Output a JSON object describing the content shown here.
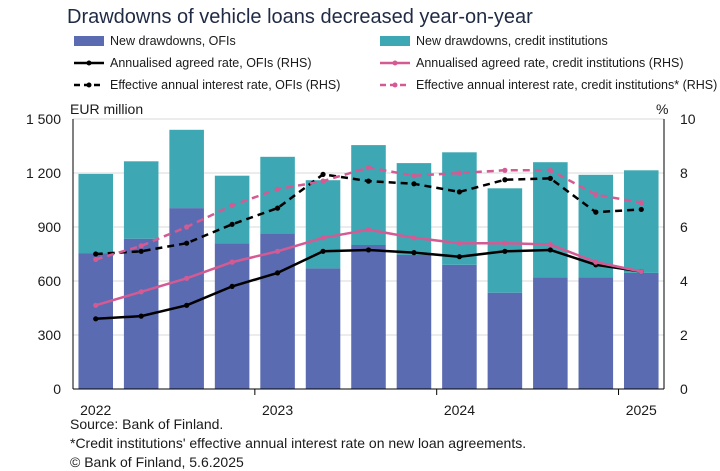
{
  "title": "Drawdowns of vehicle loans decreased year-on-year",
  "legend": [
    {
      "label": "New drawdowns, OFIs",
      "kind": "bar",
      "color": "#5b6bb1"
    },
    {
      "label": "New drawdowns, credit institutions",
      "kind": "bar",
      "color": "#3ea7b4"
    },
    {
      "label": "Annualised agreed rate, OFIs (RHS)",
      "kind": "line",
      "color": "#000000",
      "dash": false
    },
    {
      "label": "Annualised agreed rate, credit institutions (RHS)",
      "kind": "line",
      "color": "#d45a93",
      "dash": false
    },
    {
      "label": "Effective annual interest rate, OFIs (RHS)",
      "kind": "line",
      "color": "#000000",
      "dash": true
    },
    {
      "label": "Effective annual interest rate, credit institutions* (RHS)",
      "kind": "line",
      "color": "#d45a93",
      "dash": true
    }
  ],
  "footer": {
    "source": "Source: Bank of Finland.",
    "note": "*Credit institutions' effective annual interest rate on new loan agreements.",
    "copyright": "© Bank of Finland, 5.6.2025"
  },
  "chart_data": {
    "type": "bar",
    "title": "Drawdowns of vehicle loans decreased year-on-year",
    "ylabel": "EUR million",
    "y2label": "%",
    "ylim": [
      0,
      1500
    ],
    "y2lim": [
      0,
      10
    ],
    "yticks": [
      "0",
      "300",
      "600",
      "900",
      "1 200",
      "1 500"
    ],
    "y2ticks": [
      "0",
      "2",
      "4",
      "6",
      "8",
      "10"
    ],
    "xticks": [
      {
        "label": "2022",
        "index": 0
      },
      {
        "label": "2023",
        "index": 4
      },
      {
        "label": "2024",
        "index": 8
      },
      {
        "label": "2025",
        "index": 12
      }
    ],
    "periods": 13,
    "bars": [
      {
        "name": "New drawdowns, OFIs",
        "values": [
          755,
          835,
          1005,
          810,
          865,
          670,
          800,
          745,
          690,
          535,
          620,
          620,
          645
        ]
      },
      {
        "name": "New drawdowns, credit institutions",
        "values": [
          440,
          430,
          435,
          375,
          425,
          490,
          555,
          510,
          625,
          580,
          640,
          570,
          570
        ]
      }
    ],
    "lines": [
      {
        "name": "Annualised agreed rate, OFIs (RHS)",
        "values": [
          2.6,
          2.7,
          3.1,
          3.8,
          4.3,
          5.1,
          5.15,
          5.05,
          4.9,
          5.1,
          5.15,
          4.6,
          4.35
        ]
      },
      {
        "name": "Annualised agreed rate, credit institutions (RHS)",
        "values": [
          3.1,
          3.6,
          4.1,
          4.7,
          5.1,
          5.6,
          5.9,
          5.6,
          5.4,
          5.4,
          5.35,
          4.7,
          4.35
        ]
      },
      {
        "name": "Effective annual interest rate, OFIs (RHS)",
        "values": [
          5.0,
          5.1,
          5.4,
          6.1,
          6.7,
          7.95,
          7.7,
          7.6,
          7.3,
          7.75,
          7.8,
          6.55,
          6.65
        ]
      },
      {
        "name": "Effective annual interest rate, credit institutions* (RHS)",
        "values": [
          4.8,
          5.3,
          6.0,
          6.8,
          7.4,
          7.7,
          8.2,
          7.9,
          8.0,
          8.1,
          8.1,
          7.2,
          6.9
        ]
      }
    ]
  }
}
